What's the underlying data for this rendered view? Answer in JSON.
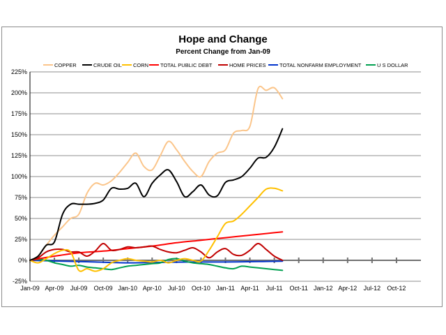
{
  "chart_data": {
    "type": "line",
    "title": "Hope and Change",
    "subtitle": "Percent Change from Jan-09",
    "xlabel": "",
    "ylabel": "",
    "ylim": [
      -25,
      225
    ],
    "y_ticks": [
      "-25%",
      "0%",
      "25%",
      "50%",
      "75%",
      "100%",
      "125%",
      "150%",
      "175%",
      "200%",
      "225%"
    ],
    "x_tick_labels": [
      "Jan-09",
      "Apr-09",
      "Jul-09",
      "Oct-09",
      "Jan-10",
      "Apr-10",
      "Jul-10",
      "Oct-10",
      "Jan-11",
      "Apr-11",
      "Jul-11",
      "Oct-11",
      "Jan-12",
      "Apr-12",
      "Jul-12",
      "Oct-12"
    ],
    "x_range_months": [
      0,
      48
    ],
    "grid": "horizontal",
    "legend_position": "top",
    "series": [
      {
        "name": "COPPER",
        "color": "#FBC58A",
        "points": [
          [
            0,
            0
          ],
          [
            1,
            5
          ],
          [
            2,
            18
          ],
          [
            3,
            30
          ],
          [
            4,
            40
          ],
          [
            5,
            50
          ],
          [
            6,
            55
          ],
          [
            7,
            80
          ],
          [
            8,
            92
          ],
          [
            9,
            90
          ],
          [
            10,
            95
          ],
          [
            11,
            105
          ],
          [
            12,
            117
          ],
          [
            13,
            128
          ],
          [
            14,
            112
          ],
          [
            15,
            108
          ],
          [
            16,
            125
          ],
          [
            17,
            142
          ],
          [
            18,
            132
          ],
          [
            19,
            118
          ],
          [
            20,
            106
          ],
          [
            21,
            100
          ],
          [
            22,
            118
          ],
          [
            23,
            128
          ],
          [
            24,
            132
          ],
          [
            25,
            152
          ],
          [
            26,
            155
          ],
          [
            27,
            160
          ],
          [
            28,
            205
          ],
          [
            29,
            203
          ],
          [
            30,
            206
          ],
          [
            31,
            193
          ]
        ]
      },
      {
        "name": "CRUDE OIL",
        "color": "#000000",
        "points": [
          [
            0,
            0
          ],
          [
            1,
            5
          ],
          [
            2,
            18
          ],
          [
            3,
            22
          ],
          [
            4,
            55
          ],
          [
            5,
            67
          ],
          [
            6,
            67
          ],
          [
            7,
            67
          ],
          [
            8,
            68
          ],
          [
            9,
            72
          ],
          [
            10,
            86
          ],
          [
            11,
            85
          ],
          [
            12,
            86
          ],
          [
            13,
            92
          ],
          [
            14,
            76
          ],
          [
            15,
            92
          ],
          [
            16,
            102
          ],
          [
            17,
            108
          ],
          [
            18,
            94
          ],
          [
            19,
            76
          ],
          [
            20,
            82
          ],
          [
            21,
            90
          ],
          [
            22,
            78
          ],
          [
            23,
            77
          ],
          [
            24,
            93
          ],
          [
            25,
            96
          ],
          [
            26,
            100
          ],
          [
            27,
            110
          ],
          [
            28,
            122
          ],
          [
            29,
            123
          ],
          [
            30,
            135
          ],
          [
            31,
            157
          ]
        ]
      },
      {
        "name": "CORN",
        "color": "#FFC000",
        "points": [
          [
            0,
            0
          ],
          [
            1,
            -3
          ],
          [
            2,
            2
          ],
          [
            3,
            8
          ],
          [
            4,
            12
          ],
          [
            5,
            10
          ],
          [
            6,
            -12
          ],
          [
            7,
            -10
          ],
          [
            8,
            -13
          ],
          [
            9,
            -10
          ],
          [
            10,
            -3
          ],
          [
            11,
            0
          ],
          [
            12,
            2
          ],
          [
            13,
            0
          ],
          [
            14,
            -1
          ],
          [
            15,
            -2
          ],
          [
            16,
            0
          ],
          [
            17,
            -3
          ],
          [
            18,
            0
          ],
          [
            19,
            2
          ],
          [
            20,
            0
          ],
          [
            21,
            -1
          ],
          [
            22,
            12
          ],
          [
            23,
            28
          ],
          [
            24,
            44
          ],
          [
            25,
            47
          ],
          [
            26,
            55
          ],
          [
            27,
            65
          ],
          [
            28,
            75
          ],
          [
            29,
            85
          ],
          [
            30,
            86
          ],
          [
            31,
            83
          ]
        ]
      },
      {
        "name": "TOTAL PUBLIC DEBT",
        "color": "#FF0000",
        "points": [
          [
            0,
            0
          ],
          [
            3,
            5
          ],
          [
            6,
            9
          ],
          [
            9,
            11
          ],
          [
            12,
            14
          ],
          [
            15,
            17
          ],
          [
            18,
            21
          ],
          [
            21,
            24
          ],
          [
            24,
            27
          ],
          [
            27,
            30
          ],
          [
            30,
            33
          ],
          [
            31,
            34
          ]
        ]
      },
      {
        "name": "HOME PRICES",
        "color": "#C00000",
        "points": [
          [
            0,
            0
          ],
          [
            1,
            3
          ],
          [
            2,
            10
          ],
          [
            3,
            13
          ],
          [
            4,
            13
          ],
          [
            5,
            10
          ],
          [
            6,
            10
          ],
          [
            7,
            5
          ],
          [
            8,
            11
          ],
          [
            9,
            20
          ],
          [
            10,
            12
          ],
          [
            11,
            13
          ],
          [
            12,
            16
          ],
          [
            13,
            15
          ],
          [
            14,
            16
          ],
          [
            15,
            17
          ],
          [
            16,
            13
          ],
          [
            17,
            10
          ],
          [
            18,
            9
          ],
          [
            19,
            12
          ],
          [
            20,
            15
          ],
          [
            21,
            10
          ],
          [
            22,
            3
          ],
          [
            23,
            10
          ],
          [
            24,
            14
          ],
          [
            25,
            7
          ],
          [
            26,
            6
          ],
          [
            27,
            12
          ],
          [
            28,
            20
          ],
          [
            29,
            13
          ],
          [
            30,
            5
          ],
          [
            31,
            0
          ]
        ]
      },
      {
        "name": "TOTAL NONFARM EMPLOYMENT",
        "color": "#0033CC",
        "points": [
          [
            0,
            0
          ],
          [
            4,
            -1
          ],
          [
            8,
            -2
          ],
          [
            12,
            -3
          ],
          [
            16,
            -2.5
          ],
          [
            20,
            -2
          ],
          [
            24,
            -2
          ],
          [
            28,
            -1.5
          ],
          [
            31,
            -1
          ]
        ]
      },
      {
        "name": "U S DOLLAR",
        "color": "#00A050",
        "points": [
          [
            0,
            0
          ],
          [
            1,
            1
          ],
          [
            2,
            0
          ],
          [
            3,
            -3
          ],
          [
            4,
            -5
          ],
          [
            5,
            -7
          ],
          [
            6,
            -6
          ],
          [
            7,
            -8
          ],
          [
            8,
            -9
          ],
          [
            9,
            -10
          ],
          [
            10,
            -11
          ],
          [
            11,
            -9
          ],
          [
            12,
            -7
          ],
          [
            13,
            -6
          ],
          [
            14,
            -5
          ],
          [
            15,
            -4
          ],
          [
            16,
            -3
          ],
          [
            17,
            1
          ],
          [
            18,
            2
          ],
          [
            19,
            -1
          ],
          [
            20,
            -3
          ],
          [
            21,
            -4
          ],
          [
            22,
            -5
          ],
          [
            23,
            -7
          ],
          [
            24,
            -9
          ],
          [
            25,
            -10
          ],
          [
            26,
            -7
          ],
          [
            27,
            -8
          ],
          [
            28,
            -9
          ],
          [
            29,
            -10
          ],
          [
            30,
            -11
          ],
          [
            31,
            -12
          ]
        ]
      }
    ]
  }
}
